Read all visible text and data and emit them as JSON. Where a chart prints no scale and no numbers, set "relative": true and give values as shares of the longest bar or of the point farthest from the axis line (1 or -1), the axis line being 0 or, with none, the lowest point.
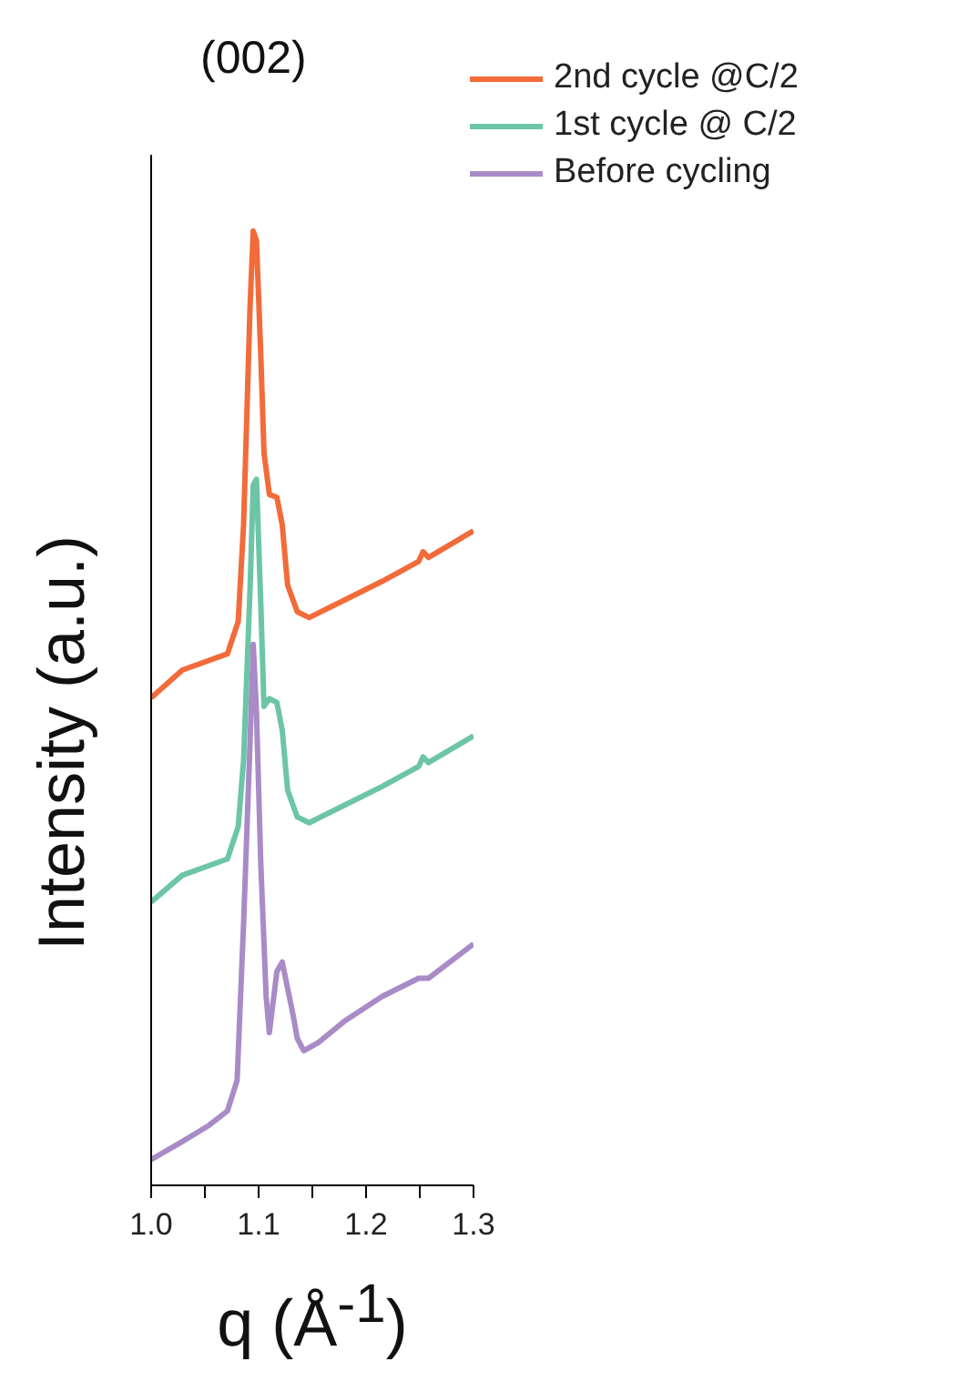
{
  "chart_data": {
    "type": "line",
    "title": "(002)",
    "xlabel": "q (Å$^{-1}$)",
    "ylabel": "Intensity (a.u.)",
    "relative": true,
    "legend": "top right",
    "xlim": [
      1.0,
      1.3
    ],
    "xticks": [
      {
        "value": 1.0,
        "label": "1.0"
      },
      {
        "value": 1.05,
        "label": null
      },
      {
        "value": 1.1,
        "label": "1.1"
      },
      {
        "value": 1.15,
        "label": null
      },
      {
        "value": 1.2,
        "label": "1.2"
      },
      {
        "value": 1.25,
        "label": null
      },
      {
        "value": 1.3,
        "label": "1.3"
      }
    ],
    "x": [
      1.0,
      1.029,
      1.071,
      1.081,
      1.086,
      1.092,
      1.095,
      1.098,
      1.102,
      1.105,
      1.11,
      1.117,
      1.122,
      1.127,
      1.136,
      1.147,
      1.181,
      1.215,
      1.249,
      1.253,
      1.258,
      1.3
    ],
    "series": [
      {
        "name": "2nd cycle @C/2",
        "color": "#f26b3a",
        "values": [
          0.511,
          0.54,
          0.557,
          0.591,
          0.692,
          0.92,
          1.0,
          0.99,
          0.871,
          0.768,
          0.724,
          0.721,
          0.692,
          0.629,
          0.601,
          0.595,
          0.614,
          0.633,
          0.654,
          0.664,
          0.658,
          0.686
        ]
      },
      {
        "name": "1st cycle @ C/2",
        "color": "#6cc5a6",
        "values": [
          0.297,
          0.325,
          0.342,
          0.376,
          0.445,
          0.624,
          0.734,
          0.74,
          0.61,
          0.502,
          0.51,
          0.506,
          0.477,
          0.414,
          0.386,
          0.38,
          0.399,
          0.418,
          0.439,
          0.449,
          0.443,
          0.471
        ]
      },
      {
        "name": "Before cycling",
        "color": "#a98bc7",
        "x": [
          1.0,
          1.029,
          1.054,
          1.071,
          1.08,
          1.086,
          1.092,
          1.095,
          1.098,
          1.102,
          1.107,
          1.11,
          1.117,
          1.122,
          1.132,
          1.136,
          1.142,
          1.156,
          1.181,
          1.215,
          1.249,
          1.258,
          1.3
        ],
        "values": [
          0.027,
          0.046,
          0.063,
          0.078,
          0.11,
          0.274,
          0.464,
          0.567,
          0.496,
          0.338,
          0.198,
          0.16,
          0.224,
          0.234,
          0.179,
          0.154,
          0.141,
          0.15,
          0.173,
          0.198,
          0.217,
          0.217,
          0.253
        ]
      }
    ]
  }
}
